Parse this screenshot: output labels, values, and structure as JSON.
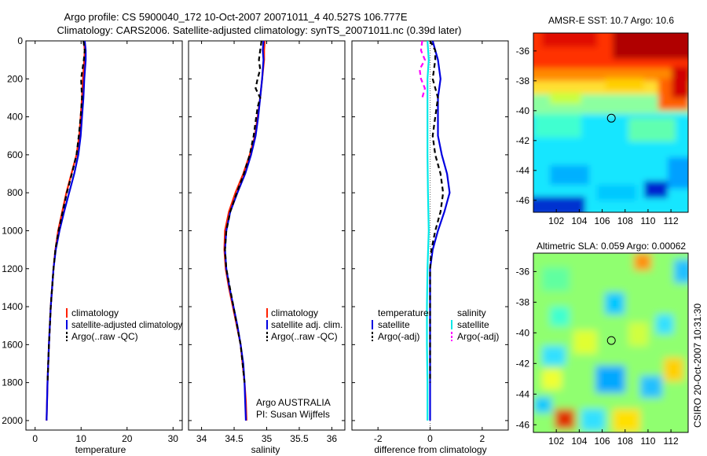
{
  "header": {
    "line1": "Argo profile: CS 5900040_172 10-Oct-2007 20071011_4 40.527S 106.777E",
    "line2": "Climatology: CARS2006. Satellite-adjusted climatology: synTS_20071011.nc (0.39d later)"
  },
  "side_label": "CSIRO 20-Oct-2007 10:31:30",
  "colors": {
    "clim": "#ff2000",
    "sat": "#0000e0",
    "argo": "#000000",
    "sal_sat": "#00e8e8",
    "sal_argo": "#ff00ff"
  },
  "chart_data": [
    {
      "type": "line",
      "id": "temperature",
      "xlabel": "temperature",
      "ylabel": "",
      "xlim": [
        -2,
        32
      ],
      "ylim": [
        2050,
        0
      ],
      "xticks": [
        0,
        10,
        20,
        30
      ],
      "xtick_labels": [
        "0",
        "10",
        "20",
        "30"
      ],
      "yticks": [
        0,
        200,
        400,
        600,
        800,
        1000,
        1200,
        1400,
        1600,
        1800,
        2000
      ],
      "ytick_labels": [
        "0",
        "200",
        "400",
        "600",
        "800",
        "1000",
        "1200",
        "1400",
        "1600",
        "1800",
        "2000"
      ],
      "series": [
        {
          "name": "climatology",
          "style": "solid",
          "color": "#ff2000",
          "depth": [
            0,
            50,
            100,
            200,
            300,
            400,
            500,
            600,
            700,
            800,
            900,
            1000,
            1100,
            1200,
            1400,
            1600,
            1800,
            2000
          ],
          "values": [
            10.6,
            10.8,
            10.7,
            10.4,
            10.2,
            9.9,
            9.6,
            9.0,
            7.9,
            6.8,
            5.9,
            5.0,
            4.4,
            4.0,
            3.4,
            3.0,
            2.7,
            2.5
          ]
        },
        {
          "name": "satellite-adjusted climatology",
          "style": "solid",
          "color": "#0000e0",
          "depth": [
            0,
            50,
            100,
            200,
            300,
            400,
            500,
            600,
            700,
            800,
            900,
            1000,
            1100,
            1200,
            1400,
            1600,
            1800,
            2000
          ],
          "values": [
            10.8,
            11.0,
            11.0,
            10.7,
            10.5,
            10.2,
            9.9,
            9.4,
            8.5,
            7.4,
            6.3,
            5.3,
            4.5,
            4.0,
            3.4,
            3.0,
            2.7,
            2.5
          ]
        },
        {
          "name": "Argo(..raw -QC)",
          "style": "dashed",
          "color": "#000000",
          "depth": [
            0,
            50,
            100,
            150,
            200,
            300,
            400,
            500,
            600,
            700,
            800,
            900,
            1000,
            1100,
            1200,
            1400,
            1600,
            1800
          ],
          "values": [
            10.5,
            10.8,
            10.6,
            10.3,
            10.0,
            10.2,
            9.9,
            9.5,
            9.0,
            8.0,
            6.9,
            6.0,
            5.1,
            4.4,
            4.0,
            3.4,
            3.0,
            2.7
          ]
        }
      ],
      "legend": [
        "climatology",
        "satellite-adjusted climatology",
        "Argo(..raw -QC)"
      ]
    },
    {
      "type": "line",
      "id": "salinity",
      "xlabel": "salinity",
      "xlim": [
        33.8,
        36.2
      ],
      "ylim": [
        2050,
        0
      ],
      "xticks": [
        34,
        34.5,
        35,
        35.5,
        36
      ],
      "xtick_labels": [
        "34",
        "34.5",
        "35",
        "35.5",
        "36"
      ],
      "series": [
        {
          "name": "climatology",
          "style": "solid",
          "color": "#ff2000",
          "depth": [
            0,
            50,
            100,
            200,
            300,
            400,
            500,
            600,
            700,
            800,
            900,
            1000,
            1100,
            1200,
            1300,
            1400,
            1500,
            1600,
            1700,
            1800,
            1900,
            2000
          ],
          "values": [
            34.97,
            34.96,
            34.96,
            34.93,
            34.9,
            34.86,
            34.82,
            34.74,
            34.64,
            34.52,
            34.42,
            34.36,
            34.35,
            34.37,
            34.42,
            34.48,
            34.54,
            34.6,
            34.63,
            34.66,
            34.68,
            34.69
          ]
        },
        {
          "name": "satellite adj. clim.",
          "style": "solid",
          "color": "#0000e0",
          "depth": [
            0,
            50,
            100,
            200,
            300,
            400,
            500,
            600,
            700,
            800,
            900,
            1000,
            1100,
            1200,
            1300,
            1400,
            1500,
            1600,
            1700,
            1800,
            1900,
            2000
          ],
          "values": [
            34.95,
            34.94,
            34.95,
            34.93,
            34.9,
            34.87,
            34.83,
            34.76,
            34.67,
            34.55,
            34.44,
            34.38,
            34.36,
            34.38,
            34.43,
            34.49,
            34.55,
            34.6,
            34.64,
            34.66,
            34.67,
            34.68
          ]
        },
        {
          "name": "Argo(..raw -QC)",
          "style": "dashed",
          "color": "#000000",
          "depth": [
            0,
            50,
            100,
            150,
            200,
            250,
            300,
            350,
            400,
            500,
            600,
            700,
            800,
            900,
            1000,
            1100,
            1200,
            1400,
            1600,
            1800
          ],
          "values": [
            34.92,
            34.9,
            34.88,
            34.9,
            34.86,
            34.83,
            34.9,
            34.86,
            34.84,
            34.8,
            34.74,
            34.65,
            34.54,
            34.44,
            34.38,
            34.36,
            34.38,
            34.49,
            34.6,
            34.66
          ]
        }
      ],
      "legend": [
        "climatology",
        "satellite adj. clim.",
        "Argo(..raw -QC)"
      ],
      "annotation": [
        "Argo AUSTRALIA",
        "PI: Susan Wijffels"
      ]
    },
    {
      "type": "line",
      "id": "difference",
      "xlabel": "difference from climatology",
      "xlim": [
        -3,
        3
      ],
      "ylim": [
        2050,
        0
      ],
      "xticks": [
        -2,
        0,
        2
      ],
      "xtick_labels": [
        "-2",
        "0",
        "2"
      ],
      "series": [
        {
          "name": "temperature satellite",
          "style": "solid",
          "color": "#0000e0",
          "depth": [
            0,
            50,
            100,
            200,
            300,
            400,
            500,
            600,
            700,
            800,
            900,
            1000,
            1100,
            1200,
            1400,
            1600,
            1800,
            2000
          ],
          "values": [
            0.1,
            0.2,
            0.3,
            0.4,
            0.3,
            0.3,
            0.3,
            0.45,
            0.65,
            0.75,
            0.55,
            0.3,
            0.1,
            0.0,
            0.0,
            0.0,
            0.0,
            0.0
          ]
        },
        {
          "name": "temperature Argo(-adj)",
          "style": "dashed",
          "color": "#000000",
          "depth": [
            0,
            50,
            100,
            200,
            300,
            400,
            500,
            600,
            700,
            800,
            900,
            1000,
            1100,
            1200,
            1400,
            1600,
            1800
          ],
          "values": [
            0.0,
            0.2,
            0.2,
            0.1,
            0.3,
            0.2,
            0.1,
            0.2,
            0.4,
            0.5,
            0.4,
            0.2,
            0.05,
            0.0,
            0.0,
            0.0,
            0.0
          ]
        },
        {
          "name": "salinity satellite",
          "style": "solid",
          "color": "#00e8e8",
          "depth": [
            0,
            100,
            200,
            400,
            600,
            800,
            1000,
            1200,
            1400,
            1600,
            1800,
            2000
          ],
          "values": [
            -0.1,
            -0.05,
            -0.1,
            -0.1,
            -0.1,
            -0.08,
            -0.05,
            -0.1,
            -0.12,
            -0.12,
            -0.1,
            -0.1
          ]
        },
        {
          "name": "salinity Argo(-adj)",
          "style": "dashed",
          "color": "#ff00ff",
          "depth": [
            0,
            50,
            100,
            150,
            200,
            250,
            300
          ],
          "values": [
            -0.3,
            -0.35,
            -0.2,
            -0.4,
            -0.35,
            -0.2,
            -0.3
          ]
        }
      ],
      "legend_headers": [
        "temperature",
        "salinity"
      ],
      "legend": [
        "satellite",
        "Argo(-adj)",
        "satellite",
        "Argo(-adj)"
      ]
    },
    {
      "type": "heatmap",
      "id": "sst",
      "title": "AMSR-E SST: 10.7  Argo: 10.6",
      "xlim": [
        100,
        113.5
      ],
      "ylim": [
        -46.8,
        -34.8
      ],
      "xticks": [
        102,
        104,
        106,
        108,
        110,
        112
      ],
      "xtick_labels": [
        "102",
        "104",
        "106",
        "108",
        "110",
        "112"
      ],
      "yticks": [
        -36,
        -38,
        -40,
        -42,
        -44,
        -46
      ],
      "ytick_labels": [
        "-36",
        "-38",
        "-40",
        "-42",
        "-44",
        "-46"
      ],
      "marker": {
        "lon": 106.8,
        "lat": -40.5
      },
      "colormap": "jet"
    },
    {
      "type": "heatmap",
      "id": "sla",
      "title": "Altimetric SLA: 0.059  Argo: 0.00062",
      "xlim": [
        100,
        113.5
      ],
      "ylim": [
        -46.5,
        -34.8
      ],
      "xticks": [
        102,
        104,
        106,
        108,
        110,
        112
      ],
      "xtick_labels": [
        "102",
        "104",
        "106",
        "108",
        "110",
        "112"
      ],
      "yticks": [
        -36,
        -38,
        -40,
        -42,
        -44,
        -46
      ],
      "ytick_labels": [
        "-36",
        "-38",
        "-40",
        "-42",
        "-44",
        "-46"
      ],
      "marker": {
        "lon": 106.8,
        "lat": -40.5
      },
      "colormap": "jet"
    }
  ]
}
